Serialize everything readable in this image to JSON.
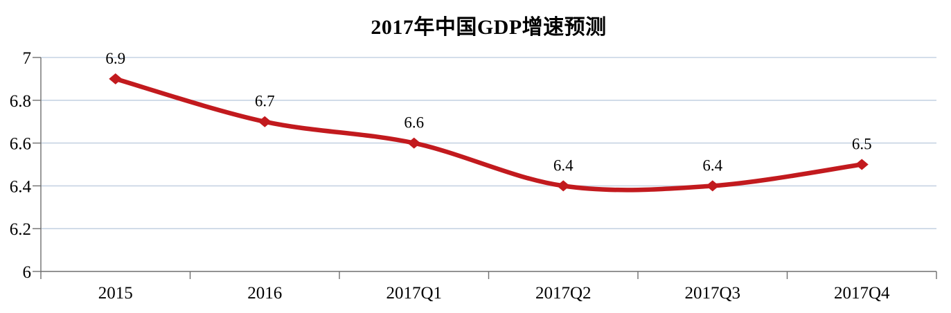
{
  "page": {
    "background": "#ffffff"
  },
  "chart_data": {
    "type": "line",
    "title": "2017年中国GDP增速预测",
    "categories": [
      "2015",
      "2016",
      "2017Q1",
      "2017Q2",
      "2017Q3",
      "2017Q4"
    ],
    "values": [
      6.9,
      6.7,
      6.6,
      6.4,
      6.4,
      6.5
    ],
    "point_labels": [
      "6.9",
      "6.7",
      "6.6",
      "6.4",
      "6.4",
      "6.5"
    ],
    "xlabel": "",
    "ylabel": "",
    "ylim": [
      6,
      7
    ],
    "yticks": [
      6,
      6.2,
      6.4,
      6.6,
      6.8,
      7
    ],
    "ytick_labels": [
      "6",
      "6.2",
      "6.4",
      "6.6",
      "6.8",
      "7"
    ],
    "grid": true,
    "legend": false,
    "smooth": true,
    "marker": "diamond",
    "colors": {
      "line": "#c21a1e",
      "marker": "#c21a1e",
      "gridline": "#c6d3e3",
      "axis": "#6e6e6e",
      "text": "#000000"
    }
  }
}
